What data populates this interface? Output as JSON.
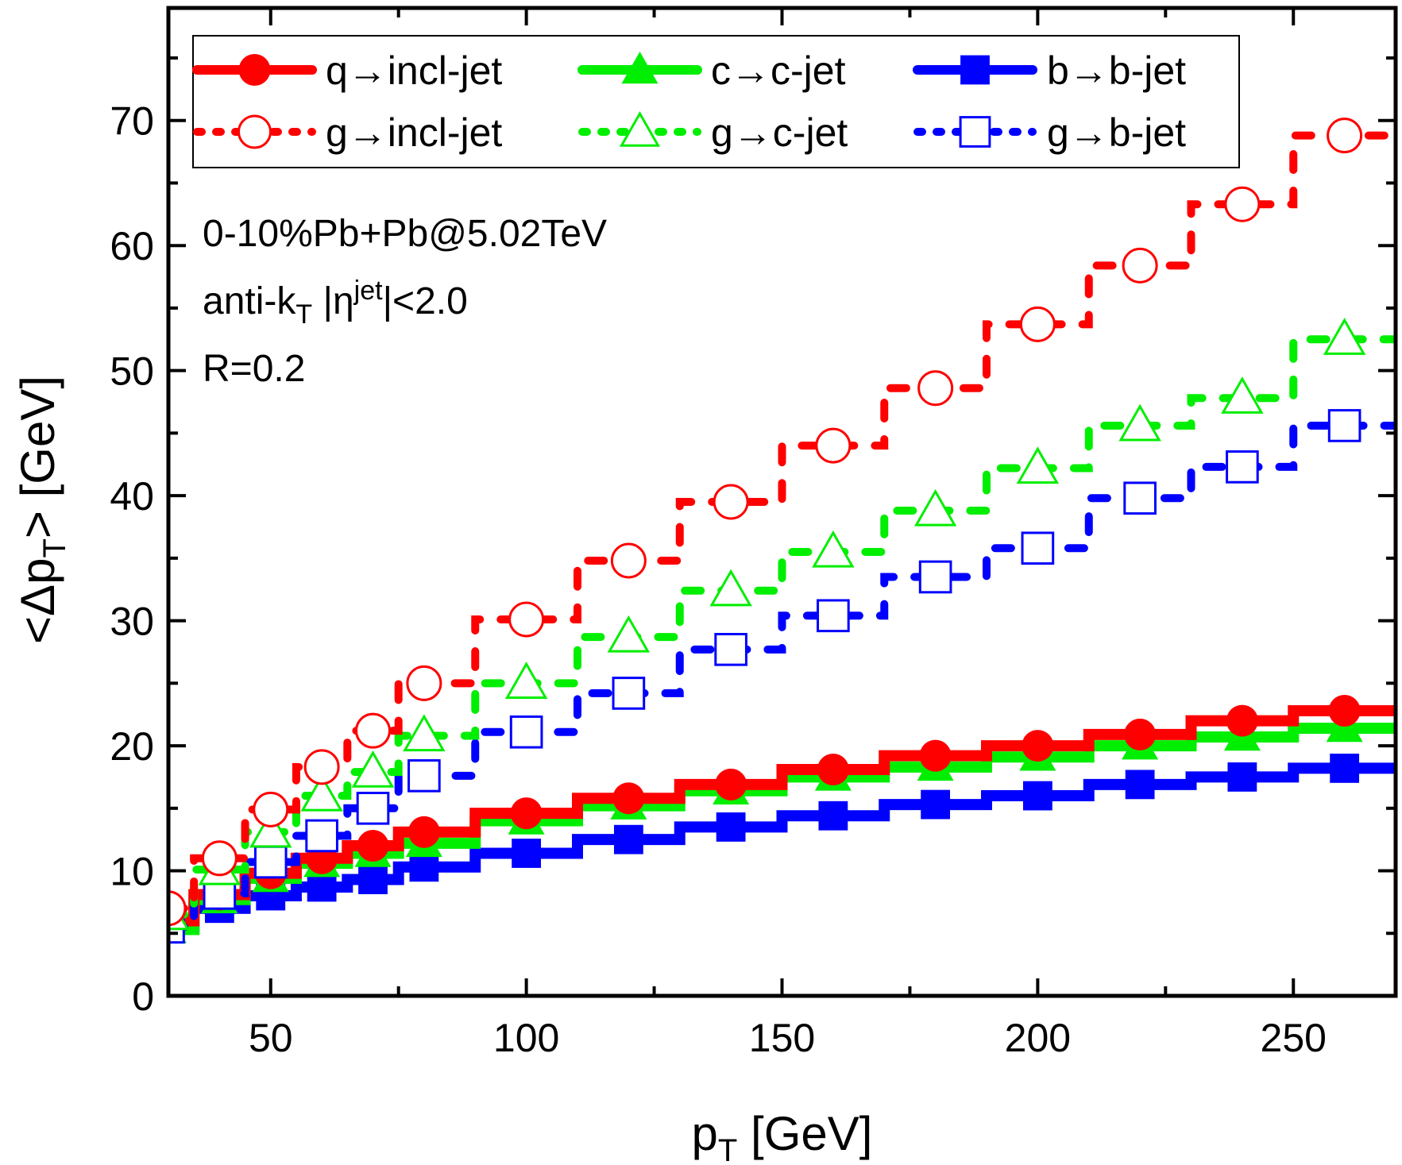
{
  "chart_data": {
    "type": "line",
    "style": "step-histogram",
    "title": "",
    "xlabel": "p_T [GeV]",
    "xlabel_main": "p",
    "xlabel_sub": "T",
    "xlabel_tail": " [GeV]",
    "ylabel": "<Δp_T> [GeV]",
    "ylabel_head": "<Δp",
    "ylabel_sub": "T",
    "ylabel_tail": "> [GeV]",
    "xlim": [
      30,
      270
    ],
    "ylim": [
      0,
      79
    ],
    "x_major_ticks": [
      50,
      100,
      150,
      200,
      250
    ],
    "x_tick_labels": [
      "50",
      "100",
      "150",
      "200",
      "250"
    ],
    "x_minor_ticks": [
      75,
      125,
      175,
      225
    ],
    "y_major_ticks": [
      0,
      10,
      20,
      30,
      40,
      50,
      60,
      70
    ],
    "y_tick_labels": [
      "0",
      "10",
      "20",
      "30",
      "40",
      "50",
      "60",
      "70"
    ],
    "y_minor_ticks": [
      5,
      15,
      25,
      35,
      45,
      55,
      65,
      75
    ],
    "grid": false,
    "legend_position": "top",
    "bin_edges": [
      30,
      35,
      45,
      55,
      65,
      75,
      90,
      110,
      130,
      150,
      170,
      190,
      210,
      230,
      250,
      270
    ],
    "x": [
      30,
      40,
      50,
      60,
      70,
      80,
      100,
      120,
      140,
      160,
      180,
      200,
      220,
      240,
      260
    ],
    "series": [
      {
        "name": "q→incl-jet",
        "color": "#ff0000",
        "line": "solid",
        "marker": "circle",
        "filled": true,
        "values": [
          6.0,
          8.1,
          9.8,
          11.0,
          12.0,
          13.1,
          14.6,
          15.8,
          16.9,
          18.1,
          19.2,
          20.0,
          20.9,
          22.0,
          22.8
        ]
      },
      {
        "name": "c→c-jet",
        "color": "#00ee00",
        "line": "solid",
        "marker": "triangle",
        "filled": true,
        "values": [
          5.3,
          7.7,
          9.4,
          10.6,
          11.4,
          12.2,
          14.0,
          15.2,
          16.4,
          17.5,
          18.3,
          19.1,
          20.0,
          20.7,
          21.4
        ]
      },
      {
        "name": "b→b-jet",
        "color": "#0000ff",
        "line": "solid",
        "marker": "square",
        "filled": true,
        "values": [
          5.5,
          7.0,
          8.0,
          8.7,
          9.3,
          10.3,
          11.4,
          12.5,
          13.5,
          14.4,
          15.3,
          16.0,
          16.9,
          17.5,
          18.2
        ]
      },
      {
        "name": "g→incl-jet",
        "color": "#ff0000",
        "line": "dashed",
        "marker": "circle",
        "filled": false,
        "values": [
          7.0,
          11.0,
          14.9,
          18.3,
          21.2,
          25.0,
          30.1,
          34.8,
          39.5,
          44.0,
          48.6,
          53.7,
          58.4,
          63.3,
          68.8
        ]
      },
      {
        "name": "g→c-jet",
        "color": "#00ee00",
        "line": "dashed",
        "marker": "triangle",
        "filled": false,
        "values": [
          6.5,
          10.1,
          13.1,
          16.0,
          17.9,
          20.8,
          25.0,
          28.7,
          32.4,
          35.5,
          38.8,
          42.2,
          45.6,
          47.8,
          52.5
        ]
      },
      {
        "name": "g→b-jet",
        "color": "#0000ff",
        "line": "dashed",
        "marker": "square",
        "filled": false,
        "values": [
          5.5,
          8.2,
          10.7,
          12.8,
          15.0,
          17.6,
          21.1,
          24.2,
          27.7,
          30.4,
          33.5,
          35.8,
          39.8,
          42.3,
          45.6
        ]
      }
    ],
    "annotations": [
      {
        "text": "0-10%Pb+Pb@5.02TeV"
      },
      {
        "text": "anti-k_T |η^jet|<2.0",
        "head": "anti-k",
        "sub": "T",
        "mid": " |η",
        "sup": "jet",
        "tail": "|<2.0"
      },
      {
        "text": "R=0.2"
      }
    ]
  }
}
